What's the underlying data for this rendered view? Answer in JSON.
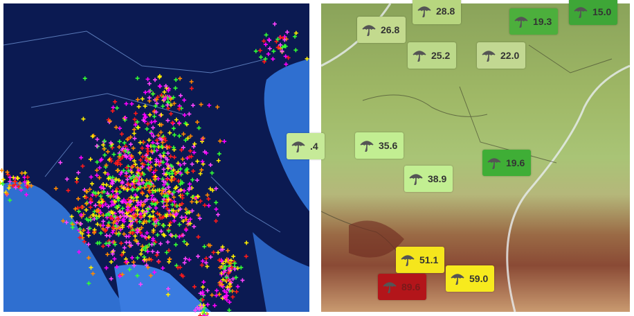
{
  "rain_labels": [
    {
      "text": "28.8",
      "color": "#b7d67f"
    },
    {
      "text": "26.8",
      "color": "#c3da8e"
    },
    {
      "text": "19.3",
      "color": "#4caf3c"
    },
    {
      "text": "15.0",
      "color": "#3ea637"
    },
    {
      "text": "25.2",
      "color": "#bcd98a"
    },
    {
      "text": "22.0",
      "color": "#c2d892"
    },
    {
      "text": ".4",
      "color": "#c6ea98"
    },
    {
      "text": "35.6",
      "color": "#c2ee92"
    },
    {
      "text": "19.6",
      "color": "#3fae36"
    },
    {
      "text": "38.9",
      "color": "#c2ef92"
    },
    {
      "text": "51.1",
      "color": "#f5e61c"
    },
    {
      "text": "89.6",
      "color": "#b3151a"
    },
    {
      "text": "59.0",
      "color": "#f7ea1e"
    }
  ]
}
